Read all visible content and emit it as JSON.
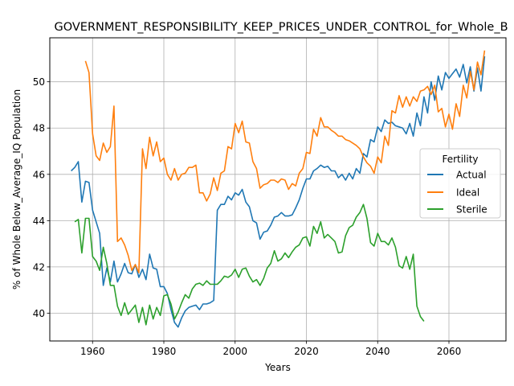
{
  "chart_data": {
    "type": "line",
    "title": "GOVERNMENT_RESPONSIBILITY_KEEP_PRICES_UNDER_CONTROL_for_Whole_B",
    "xlabel": "Years",
    "ylabel": "% of Whole Below_Average_IQ Population",
    "xlim": [
      1948,
      2076
    ],
    "ylim": [
      38.8,
      51.9
    ],
    "xticks": [
      1960,
      1980,
      2000,
      2020,
      2040,
      2060
    ],
    "yticks": [
      40,
      42,
      44,
      46,
      48,
      50
    ],
    "grid": true,
    "legend": {
      "title": "Fertility",
      "placement": "center-right"
    },
    "series": [
      {
        "name": "Actual",
        "color": "#1f77b4",
        "x": [
          1954,
          1955,
          1956,
          1957,
          1958,
          1959,
          1960,
          1961,
          1962,
          1963,
          1964,
          1965,
          1966,
          1967,
          1968,
          1969,
          1970,
          1971,
          1972,
          1973,
          1974,
          1975,
          1976,
          1977,
          1978,
          1979,
          1980,
          1981,
          1982,
          1983,
          1984,
          1985,
          1986,
          1987,
          1988,
          1989,
          1990,
          1991,
          1992,
          1993,
          1994,
          1995,
          1996,
          1997,
          1998,
          1999,
          2000,
          2001,
          2002,
          2003,
          2004,
          2005,
          2006,
          2007,
          2008,
          2009,
          2010,
          2011,
          2012,
          2013,
          2014,
          2015,
          2016,
          2017,
          2018,
          2019,
          2020,
          2021,
          2022,
          2023,
          2024,
          2025,
          2026,
          2027,
          2028,
          2029,
          2030,
          2031,
          2032,
          2033,
          2034,
          2035,
          2036,
          2037,
          2038,
          2039,
          2040,
          2041,
          2042,
          2043,
          2044,
          2045,
          2046,
          2047,
          2048,
          2049,
          2050,
          2051,
          2052,
          2053,
          2054,
          2055,
          2056,
          2057,
          2058,
          2059,
          2060,
          2061,
          2062,
          2063,
          2064,
          2065,
          2066,
          2067,
          2068,
          2069,
          2070
        ],
        "values": [
          46.15,
          46.3,
          46.55,
          44.8,
          45.7,
          45.65,
          44.45,
          43.95,
          43.45,
          41.2,
          41.95,
          41.35,
          42.25,
          41.35,
          41.7,
          42.15,
          41.75,
          41.7,
          42.1,
          41.55,
          41.9,
          41.45,
          42.55,
          41.95,
          41.9,
          41.15,
          41.15,
          40.85,
          40.15,
          39.6,
          39.4,
          39.8,
          40.1,
          40.25,
          40.3,
          40.35,
          40.15,
          40.4,
          40.4,
          40.45,
          40.55,
          44.45,
          44.7,
          44.7,
          45.05,
          44.9,
          45.2,
          45.1,
          45.35,
          44.8,
          44.6,
          44.0,
          43.9,
          43.2,
          43.5,
          43.55,
          43.8,
          44.15,
          44.2,
          44.35,
          44.2,
          44.2,
          44.25,
          44.55,
          44.9,
          45.4,
          45.8,
          45.8,
          46.15,
          46.25,
          46.4,
          46.3,
          46.35,
          46.15,
          46.15,
          45.85,
          46.0,
          45.75,
          46.05,
          45.8,
          46.25,
          46.05,
          46.9,
          46.75,
          47.5,
          47.4,
          48.05,
          47.85,
          48.35,
          48.2,
          48.25,
          48.1,
          48.05,
          48.0,
          47.75,
          48.2,
          47.65,
          48.65,
          48.1,
          49.35,
          48.65,
          50.0,
          49.2,
          50.25,
          49.65,
          50.4,
          50.15,
          50.35,
          50.55,
          50.2,
          50.75,
          49.95,
          50.65,
          49.6,
          50.6,
          49.6,
          51.1
        ]
      },
      {
        "name": "Ideal",
        "color": "#ff7f0e",
        "x": [
          1958,
          1959,
          1960,
          1961,
          1962,
          1963,
          1964,
          1965,
          1966,
          1967,
          1968,
          1969,
          1970,
          1971,
          1972,
          1973,
          1974,
          1975,
          1976,
          1977,
          1978,
          1979,
          1980,
          1981,
          1982,
          1983,
          1984,
          1985,
          1986,
          1987,
          1988,
          1989,
          1990,
          1991,
          1992,
          1993,
          1994,
          1995,
          1996,
          1997,
          1998,
          1999,
          2000,
          2001,
          2002,
          2003,
          2004,
          2005,
          2006,
          2007,
          2008,
          2009,
          2010,
          2011,
          2012,
          2013,
          2014,
          2015,
          2016,
          2017,
          2018,
          2019,
          2020,
          2021,
          2022,
          2023,
          2024,
          2025,
          2026,
          2027,
          2028,
          2029,
          2030,
          2031,
          2032,
          2033,
          2034,
          2035,
          2036,
          2037,
          2038,
          2039,
          2040,
          2041,
          2042,
          2043,
          2044,
          2045,
          2046,
          2047,
          2048,
          2049,
          2050,
          2051,
          2052,
          2053,
          2054,
          2055,
          2056,
          2057,
          2058,
          2059,
          2060,
          2061,
          2062,
          2063,
          2064,
          2065,
          2066,
          2067,
          2068,
          2069,
          2070
        ],
        "values": [
          50.9,
          50.4,
          47.75,
          46.8,
          46.6,
          47.35,
          46.95,
          47.2,
          48.95,
          43.1,
          43.25,
          42.95,
          42.5,
          41.85,
          42.1,
          41.75,
          47.1,
          46.25,
          47.6,
          46.8,
          47.4,
          46.55,
          46.7,
          46.0,
          45.75,
          46.25,
          45.75,
          46.0,
          46.05,
          46.3,
          46.3,
          46.4,
          45.2,
          45.2,
          44.85,
          45.15,
          45.85,
          45.3,
          46.05,
          46.15,
          47.2,
          47.1,
          48.2,
          47.8,
          48.3,
          47.4,
          47.35,
          46.55,
          46.25,
          45.4,
          45.55,
          45.6,
          45.75,
          45.75,
          45.65,
          45.8,
          45.75,
          45.35,
          45.6,
          45.5,
          46.05,
          46.25,
          46.95,
          46.9,
          47.95,
          47.65,
          48.45,
          48.05,
          48.05,
          47.9,
          47.8,
          47.65,
          47.65,
          47.5,
          47.45,
          47.35,
          47.25,
          47.1,
          46.75,
          46.5,
          46.35,
          46.05,
          46.75,
          46.5,
          47.65,
          47.25,
          48.75,
          48.65,
          49.4,
          48.9,
          49.35,
          48.95,
          49.35,
          49.15,
          49.6,
          49.65,
          49.8,
          49.45,
          49.85,
          48.7,
          48.85,
          48.05,
          48.6,
          47.95,
          49.05,
          48.5,
          49.85,
          49.3,
          50.45,
          49.65,
          50.85,
          50.3,
          51.35
        ]
      },
      {
        "name": "Sterile",
        "color": "#2ca02c",
        "x": [
          1955,
          1956,
          1957,
          1958,
          1959,
          1960,
          1961,
          1962,
          1963,
          1964,
          1965,
          1966,
          1967,
          1968,
          1969,
          1970,
          1971,
          1972,
          1973,
          1974,
          1975,
          1976,
          1977,
          1978,
          1979,
          1980,
          1981,
          1982,
          1983,
          1984,
          1985,
          1986,
          1987,
          1988,
          1989,
          1990,
          1991,
          1992,
          1993,
          1994,
          1995,
          1996,
          1997,
          1998,
          1999,
          2000,
          2001,
          2002,
          2003,
          2004,
          2005,
          2006,
          2007,
          2008,
          2009,
          2010,
          2011,
          2012,
          2013,
          2014,
          2015,
          2016,
          2017,
          2018,
          2019,
          2020,
          2021,
          2022,
          2023,
          2024,
          2025,
          2026,
          2027,
          2028,
          2029,
          2030,
          2031,
          2032,
          2033,
          2034,
          2035,
          2036,
          2037,
          2038,
          2039,
          2040,
          2041,
          2042,
          2043,
          2044,
          2045,
          2046,
          2047,
          2048,
          2049,
          2050,
          2051,
          2052,
          2053
        ],
        "values": [
          43.95,
          44.05,
          42.6,
          44.1,
          44.1,
          42.45,
          42.25,
          41.85,
          42.85,
          42.15,
          41.2,
          41.2,
          40.3,
          39.9,
          40.45,
          39.95,
          40.15,
          40.35,
          39.6,
          40.25,
          39.5,
          40.35,
          39.75,
          40.25,
          39.9,
          40.75,
          40.8,
          40.4,
          39.75,
          40.05,
          40.45,
          40.8,
          40.65,
          41.05,
          41.25,
          41.3,
          41.2,
          41.4,
          41.25,
          41.25,
          41.25,
          41.4,
          41.6,
          41.55,
          41.65,
          41.9,
          41.55,
          41.9,
          41.95,
          41.6,
          41.35,
          41.45,
          41.2,
          41.5,
          41.95,
          42.15,
          42.7,
          42.25,
          42.35,
          42.6,
          42.4,
          42.65,
          42.85,
          42.95,
          43.25,
          43.3,
          42.9,
          43.75,
          43.45,
          43.95,
          43.25,
          43.4,
          43.25,
          43.1,
          42.6,
          42.65,
          43.35,
          43.7,
          43.8,
          44.15,
          44.35,
          44.7,
          44.1,
          43.05,
          42.9,
          43.45,
          43.1,
          43.1,
          42.95,
          43.25,
          42.85,
          42.05,
          41.95,
          42.45,
          41.9,
          42.55,
          40.3,
          39.85,
          39.65
        ]
      }
    ]
  }
}
